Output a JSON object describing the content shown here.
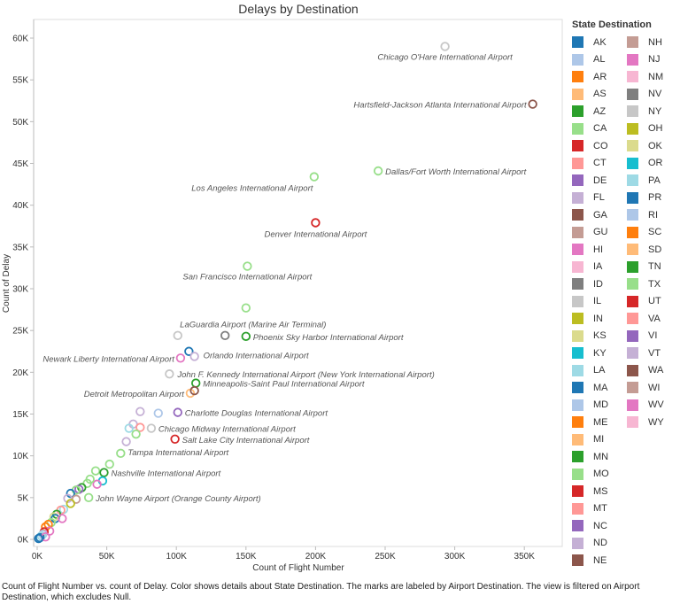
{
  "chart_data": {
    "type": "scatter",
    "title": "Delays by Destination",
    "xlabel": "Count of Flight Number",
    "ylabel": "Count of Delay",
    "xlim": [
      0,
      370000
    ],
    "ylim": [
      -1000,
      62000
    ],
    "x_ticks": [
      0,
      50000,
      100000,
      150000,
      200000,
      250000,
      300000,
      350000
    ],
    "x_tick_labels": [
      "0K",
      "50K",
      "100K",
      "150K",
      "200K",
      "250K",
      "300K",
      "350K"
    ],
    "y_ticks": [
      0,
      5000,
      10000,
      15000,
      20000,
      25000,
      30000,
      35000,
      40000,
      45000,
      50000,
      55000,
      60000
    ],
    "y_tick_labels": [
      "0K",
      "5K",
      "10K",
      "15K",
      "20K",
      "25K",
      "30K",
      "35K",
      "40K",
      "45K",
      "50K",
      "55K",
      "60K"
    ],
    "grid": false,
    "marker": "hollow-circle",
    "legend": {
      "title": "State Destination",
      "placement": "right",
      "entries": [
        {
          "state": "AK",
          "color": "#1f77b4"
        },
        {
          "state": "AL",
          "color": "#aec7e8"
        },
        {
          "state": "AR",
          "color": "#ff7f0e"
        },
        {
          "state": "AS",
          "color": "#ffbb78"
        },
        {
          "state": "AZ",
          "color": "#2ca02c"
        },
        {
          "state": "CA",
          "color": "#98df8a"
        },
        {
          "state": "CO",
          "color": "#d62728"
        },
        {
          "state": "CT",
          "color": "#ff9896"
        },
        {
          "state": "DE",
          "color": "#9467bd"
        },
        {
          "state": "FL",
          "color": "#c5b0d5"
        },
        {
          "state": "GA",
          "color": "#8c564b"
        },
        {
          "state": "GU",
          "color": "#c49c94"
        },
        {
          "state": "HI",
          "color": "#e377c2"
        },
        {
          "state": "IA",
          "color": "#f7b6d2"
        },
        {
          "state": "ID",
          "color": "#7f7f7f"
        },
        {
          "state": "IL",
          "color": "#c7c7c7"
        },
        {
          "state": "IN",
          "color": "#bcbd22"
        },
        {
          "state": "KS",
          "color": "#dbdb8d"
        },
        {
          "state": "KY",
          "color": "#17becf"
        },
        {
          "state": "LA",
          "color": "#9edae5"
        },
        {
          "state": "MA",
          "color": "#1f77b4"
        },
        {
          "state": "MD",
          "color": "#aec7e8"
        },
        {
          "state": "ME",
          "color": "#ff7f0e"
        },
        {
          "state": "MI",
          "color": "#ffbb78"
        },
        {
          "state": "MN",
          "color": "#2ca02c"
        },
        {
          "state": "MO",
          "color": "#98df8a"
        },
        {
          "state": "MS",
          "color": "#d62728"
        },
        {
          "state": "MT",
          "color": "#ff9896"
        },
        {
          "state": "NC",
          "color": "#9467bd"
        },
        {
          "state": "ND",
          "color": "#c5b0d5"
        },
        {
          "state": "NE",
          "color": "#8c564b"
        },
        {
          "state": "NH",
          "color": "#c49c94"
        },
        {
          "state": "NJ",
          "color": "#e377c2"
        },
        {
          "state": "NM",
          "color": "#f7b6d2"
        },
        {
          "state": "NV",
          "color": "#7f7f7f"
        },
        {
          "state": "NY",
          "color": "#c7c7c7"
        },
        {
          "state": "OH",
          "color": "#bcbd22"
        },
        {
          "state": "OK",
          "color": "#dbdb8d"
        },
        {
          "state": "OR",
          "color": "#17becf"
        },
        {
          "state": "PA",
          "color": "#9edae5"
        },
        {
          "state": "PR",
          "color": "#1f77b4"
        },
        {
          "state": "RI",
          "color": "#aec7e8"
        },
        {
          "state": "SC",
          "color": "#ff7f0e"
        },
        {
          "state": "SD",
          "color": "#ffbb78"
        },
        {
          "state": "TN",
          "color": "#2ca02c"
        },
        {
          "state": "TX",
          "color": "#98df8a"
        },
        {
          "state": "UT",
          "color": "#d62728"
        },
        {
          "state": "VA",
          "color": "#ff9896"
        },
        {
          "state": "VI",
          "color": "#9467bd"
        },
        {
          "state": "VT",
          "color": "#c5b0d5"
        },
        {
          "state": "WA",
          "color": "#8c564b"
        },
        {
          "state": "WI",
          "color": "#c49c94"
        },
        {
          "state": "WV",
          "color": "#e377c2"
        },
        {
          "state": "WY",
          "color": "#f7b6d2"
        }
      ]
    },
    "points": [
      {
        "x": 293000,
        "y": 59000,
        "state": "IL",
        "label": "Chicago O'Hare International Airport"
      },
      {
        "x": 356000,
        "y": 52100,
        "state": "GA",
        "label": "Hartsfield-Jackson Atlanta International Airport"
      },
      {
        "x": 245000,
        "y": 44100,
        "state": "TX",
        "label": "Dallas/Fort Worth International Airport"
      },
      {
        "x": 199000,
        "y": 43400,
        "state": "CA",
        "label": "Los Angeles International Airport"
      },
      {
        "x": 200000,
        "y": 37900,
        "state": "CO",
        "label": "Denver International Airport"
      },
      {
        "x": 151000,
        "y": 32700,
        "state": "CA",
        "label": "San Francisco International Airport"
      },
      {
        "x": 150000,
        "y": 27700,
        "state": "CA",
        "label": "LaGuardia Airport (Marine Air Terminal)"
      },
      {
        "x": 101000,
        "y": 24400,
        "state": "NY"
      },
      {
        "x": 135000,
        "y": 24400,
        "state": "NV"
      },
      {
        "x": 150000,
        "y": 24300,
        "state": "AZ",
        "label": "Phoenix Sky Harbor International Airport"
      },
      {
        "x": 109000,
        "y": 22500,
        "state": "MA"
      },
      {
        "x": 103000,
        "y": 21700,
        "state": "NJ",
        "label": "Newark Liberty International Airport"
      },
      {
        "x": 113000,
        "y": 21900,
        "state": "FL",
        "label": "Orlando International Airport"
      },
      {
        "x": 95000,
        "y": 19800,
        "state": "NY",
        "label": "John F. Kennedy International Airport (New York International Airport)"
      },
      {
        "x": 114000,
        "y": 18700,
        "state": "MN",
        "label": "Minneapolis-Saint Paul International Airport"
      },
      {
        "x": 110000,
        "y": 17500,
        "state": "MI",
        "label": "Detroit Metropolitan Airport"
      },
      {
        "x": 113000,
        "y": 17800,
        "state": "WA"
      },
      {
        "x": 74000,
        "y": 15300,
        "state": "FL"
      },
      {
        "x": 87000,
        "y": 15100,
        "state": "MD"
      },
      {
        "x": 101000,
        "y": 15200,
        "state": "NC",
        "label": "Charlotte Douglas International Airport"
      },
      {
        "x": 69000,
        "y": 13800,
        "state": "FL"
      },
      {
        "x": 66000,
        "y": 13300,
        "state": "PA"
      },
      {
        "x": 74000,
        "y": 13400,
        "state": "CT"
      },
      {
        "x": 82000,
        "y": 13300,
        "state": "IL",
        "label": "Chicago Midway International Airport"
      },
      {
        "x": 71000,
        "y": 12600,
        "state": "CA"
      },
      {
        "x": 99000,
        "y": 12000,
        "state": "UT",
        "label": "Salt Lake City International Airport"
      },
      {
        "x": 64000,
        "y": 11700,
        "state": "FL"
      },
      {
        "x": 60000,
        "y": 10300,
        "state": "CA",
        "label": "Tampa International Airport"
      },
      {
        "x": 52000,
        "y": 9000,
        "state": "CA"
      },
      {
        "x": 42000,
        "y": 8200,
        "state": "CA"
      },
      {
        "x": 48000,
        "y": 8000,
        "state": "TN",
        "label": "Nashville International Airport"
      },
      {
        "x": 47000,
        "y": 7000,
        "state": "OR"
      },
      {
        "x": 43000,
        "y": 6600,
        "state": "HI"
      },
      {
        "x": 38000,
        "y": 7200,
        "state": "CA"
      },
      {
        "x": 36000,
        "y": 6700,
        "state": "TX"
      },
      {
        "x": 37000,
        "y": 5000,
        "state": "CA",
        "label": "John Wayne Airport (Orange County Airport)"
      },
      {
        "x": 32000,
        "y": 6200,
        "state": "AZ"
      },
      {
        "x": 30000,
        "y": 6000,
        "state": "NC"
      },
      {
        "x": 28000,
        "y": 5900,
        "state": "TX"
      },
      {
        "x": 24000,
        "y": 5500,
        "state": "MA"
      },
      {
        "x": 22000,
        "y": 4900,
        "state": "FL"
      },
      {
        "x": 28000,
        "y": 4800,
        "state": "WI"
      },
      {
        "x": 24000,
        "y": 4300,
        "state": "OH"
      },
      {
        "x": 19000,
        "y": 3600,
        "state": "PA"
      },
      {
        "x": 17000,
        "y": 3500,
        "state": "CT"
      },
      {
        "x": 14000,
        "y": 3000,
        "state": "TN"
      },
      {
        "x": 12000,
        "y": 2700,
        "state": "KS"
      },
      {
        "x": 13000,
        "y": 2500,
        "state": "MA"
      },
      {
        "x": 18000,
        "y": 2500,
        "state": "HI"
      },
      {
        "x": 10000,
        "y": 2000,
        "state": "TX"
      },
      {
        "x": 8000,
        "y": 1800,
        "state": "AR"
      },
      {
        "x": 6000,
        "y": 1500,
        "state": "SC"
      },
      {
        "x": 9000,
        "y": 1000,
        "state": "WV"
      },
      {
        "x": 5000,
        "y": 900,
        "state": "CO"
      },
      {
        "x": 4000,
        "y": 600,
        "state": "AL"
      },
      {
        "x": 3000,
        "y": 400,
        "state": "PA"
      },
      {
        "x": 2000,
        "y": 200,
        "state": "AK"
      },
      {
        "x": 6000,
        "y": 300,
        "state": "NJ"
      },
      {
        "x": 1000,
        "y": 100,
        "state": "PR"
      }
    ]
  },
  "footnote": "Count of Flight Number vs. count of Delay.  Color shows details about State Destination.  The marks are labeled by Airport Destination. The view is filtered on Airport Destination, which excludes Null."
}
